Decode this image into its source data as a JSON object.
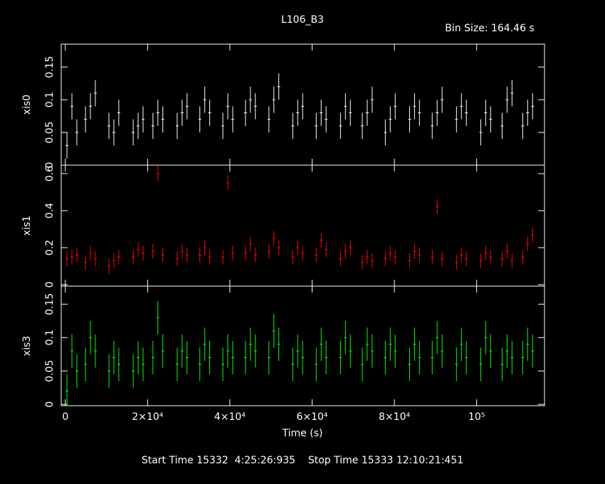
{
  "chart_data": [
    {
      "type": "scatter",
      "title": "L106_B3",
      "subtitle": "Bin Size: 164.46 s",
      "ylabel": "xis0",
      "color": "#ffffff",
      "xlim": [
        -1000,
        116500
      ],
      "ylim": [
        0,
        0.185
      ],
      "yticks": [
        0,
        0.05,
        0.1,
        0.15
      ],
      "error": 0.02,
      "x": [
        400,
        1600,
        2800,
        4900,
        6100,
        7300,
        10600,
        11800,
        13000,
        16500,
        17700,
        18900,
        21300,
        22500,
        23700,
        27200,
        28400,
        29600,
        32700,
        33900,
        35100,
        38300,
        39500,
        40700,
        43800,
        45000,
        46200,
        49500,
        50700,
        51900,
        55300,
        56500,
        57700,
        61000,
        62200,
        63400,
        66900,
        68100,
        69300,
        72200,
        73400,
        74600,
        77800,
        79000,
        80200,
        83700,
        84900,
        86100,
        89200,
        90400,
        91600,
        95100,
        96300,
        97500,
        101000,
        102200,
        103400,
        106200,
        107400,
        108600,
        111200,
        112400,
        113600
      ],
      "values": [
        0.03,
        0.09,
        0.05,
        0.07,
        0.09,
        0.11,
        0.06,
        0.05,
        0.08,
        0.05,
        0.06,
        0.07,
        0.06,
        0.08,
        0.07,
        0.06,
        0.08,
        0.09,
        0.07,
        0.1,
        0.08,
        0.06,
        0.09,
        0.07,
        0.08,
        0.1,
        0.09,
        0.07,
        0.1,
        0.12,
        0.06,
        0.08,
        0.09,
        0.06,
        0.08,
        0.07,
        0.06,
        0.09,
        0.08,
        0.06,
        0.08,
        0.1,
        0.05,
        0.07,
        0.09,
        0.07,
        0.09,
        0.08,
        0.06,
        0.08,
        0.1,
        0.07,
        0.09,
        0.08,
        0.05,
        0.08,
        0.07,
        0.06,
        0.1,
        0.11,
        0.06,
        0.08,
        0.09
      ]
    },
    {
      "type": "scatter",
      "ylabel": "xis1",
      "color": "#ff0000",
      "xlim": [
        -1000,
        116500
      ],
      "ylim": [
        -0.008,
        0.646
      ],
      "yticks": [
        0,
        0.2,
        0.4,
        0.6
      ],
      "error": 0.04,
      "x": [
        400,
        1600,
        2800,
        4900,
        6100,
        7300,
        10600,
        11800,
        13000,
        16500,
        17700,
        18900,
        21300,
        22500,
        23700,
        27200,
        28400,
        29600,
        32700,
        33900,
        35100,
        38300,
        39500,
        40700,
        43800,
        45000,
        46200,
        49500,
        50700,
        51900,
        55300,
        56500,
        57700,
        61000,
        62200,
        63400,
        66900,
        68100,
        69300,
        72200,
        73400,
        74600,
        77800,
        79000,
        80200,
        83700,
        84900,
        86100,
        89200,
        90400,
        91600,
        95100,
        96300,
        97500,
        101000,
        102200,
        103400,
        106200,
        107400,
        108600,
        111200,
        112400,
        113600
      ],
      "values": [
        0.14,
        0.15,
        0.16,
        0.12,
        0.17,
        0.14,
        0.1,
        0.13,
        0.15,
        0.15,
        0.19,
        0.17,
        0.18,
        0.6,
        0.16,
        0.14,
        0.18,
        0.16,
        0.16,
        0.2,
        0.15,
        0.15,
        0.55,
        0.17,
        0.17,
        0.22,
        0.16,
        0.18,
        0.25,
        0.2,
        0.15,
        0.2,
        0.17,
        0.16,
        0.24,
        0.19,
        0.14,
        0.18,
        0.2,
        0.12,
        0.15,
        0.13,
        0.14,
        0.17,
        0.15,
        0.13,
        0.18,
        0.16,
        0.15,
        0.42,
        0.14,
        0.12,
        0.16,
        0.14,
        0.13,
        0.17,
        0.15,
        0.14,
        0.18,
        0.13,
        0.15,
        0.22,
        0.27
      ]
    },
    {
      "type": "scatter",
      "ylabel": "xis3",
      "xlabel": "Time (s)",
      "color": "#00ff00",
      "annotation": "Start Time 15332  4:25:26:935    Stop Time 15333 12:10:21:451",
      "xlim": [
        -1000,
        116500
      ],
      "ylim": [
        -0.002,
        0.177
      ],
      "yticks": [
        0,
        0.05,
        0.1,
        0.15
      ],
      "error": 0.025,
      "xticks": [
        0,
        {
          "value": 20000,
          "label": "2×10⁴"
        },
        {
          "value": 40000,
          "label": "4×10⁴"
        },
        {
          "value": 60000,
          "label": "6×10⁴"
        },
        {
          "value": 80000,
          "label": "8×10⁴"
        },
        {
          "value": 100000,
          "label": "10⁵"
        }
      ],
      "x": [
        400,
        1600,
        2800,
        4900,
        6100,
        7300,
        10600,
        11800,
        13000,
        16500,
        17700,
        18900,
        21300,
        22500,
        23700,
        27200,
        28400,
        29600,
        32700,
        33900,
        35100,
        38300,
        39500,
        40700,
        43800,
        45000,
        46200,
        49500,
        50700,
        51900,
        55300,
        56500,
        57700,
        61000,
        62200,
        63400,
        66900,
        68100,
        69300,
        72200,
        73400,
        74600,
        77800,
        79000,
        80200,
        83700,
        84900,
        86100,
        89200,
        90400,
        91600,
        95100,
        96300,
        97500,
        101000,
        102200,
        103400,
        106200,
        107400,
        108600,
        111200,
        112400,
        113600
      ],
      "values": [
        0.02,
        0.08,
        0.05,
        0.06,
        0.1,
        0.08,
        0.05,
        0.07,
        0.06,
        0.05,
        0.07,
        0.06,
        0.07,
        0.13,
        0.08,
        0.06,
        0.08,
        0.07,
        0.06,
        0.09,
        0.07,
        0.06,
        0.08,
        0.07,
        0.07,
        0.09,
        0.08,
        0.07,
        0.11,
        0.09,
        0.06,
        0.08,
        0.07,
        0.06,
        0.09,
        0.07,
        0.07,
        0.1,
        0.08,
        0.06,
        0.09,
        0.08,
        0.07,
        0.09,
        0.08,
        0.06,
        0.09,
        0.07,
        0.07,
        0.1,
        0.08,
        0.06,
        0.09,
        0.07,
        0.06,
        0.1,
        0.08,
        0.06,
        0.08,
        0.07,
        0.07,
        0.09,
        0.08
      ]
    }
  ]
}
